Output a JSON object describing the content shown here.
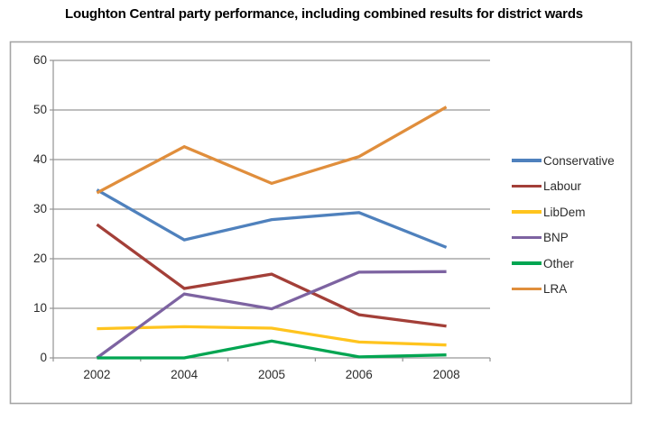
{
  "title": "Loughton Central party performance, including combined results for district wards",
  "colors": {
    "background": "#ffffff",
    "plot_border": "#a5a5a5",
    "gridline": "#969696",
    "axis_text": "#2b2b2b",
    "title_text": "#000000"
  },
  "chart_data": {
    "type": "line",
    "title": "Loughton Central party performance, including combined results for district wards",
    "categories": [
      "2002",
      "2004",
      "2005",
      "2006",
      "2008"
    ],
    "series": [
      {
        "name": "Conservative",
        "color": "#4f81bd",
        "values": [
          33.9,
          23.8,
          27.9,
          29.3,
          22.3
        ]
      },
      {
        "name": "Labour",
        "color": "#a33f38",
        "values": [
          26.9,
          14.0,
          16.9,
          8.7,
          6.4
        ]
      },
      {
        "name": "LibDem",
        "color": "#ffc41e",
        "values": [
          5.9,
          6.3,
          6.0,
          3.2,
          2.6
        ]
      },
      {
        "name": "BNP",
        "color": "#7d63a1",
        "values": [
          0.0,
          12.9,
          9.9,
          17.3,
          17.4
        ]
      },
      {
        "name": "Other",
        "color": "#00a551",
        "values": [
          0.0,
          0.0,
          3.4,
          0.2,
          0.6
        ]
      },
      {
        "name": "LRA",
        "color": "#e08e3c",
        "values": [
          33.3,
          42.6,
          35.2,
          40.6,
          50.6
        ]
      }
    ],
    "xlabel": "",
    "ylabel": "",
    "ylim": [
      0,
      60
    ],
    "ytick_step": 10,
    "yticks": [
      "0",
      "10",
      "20",
      "30",
      "40",
      "50",
      "60"
    ],
    "grid": true,
    "legend_position": "right"
  }
}
